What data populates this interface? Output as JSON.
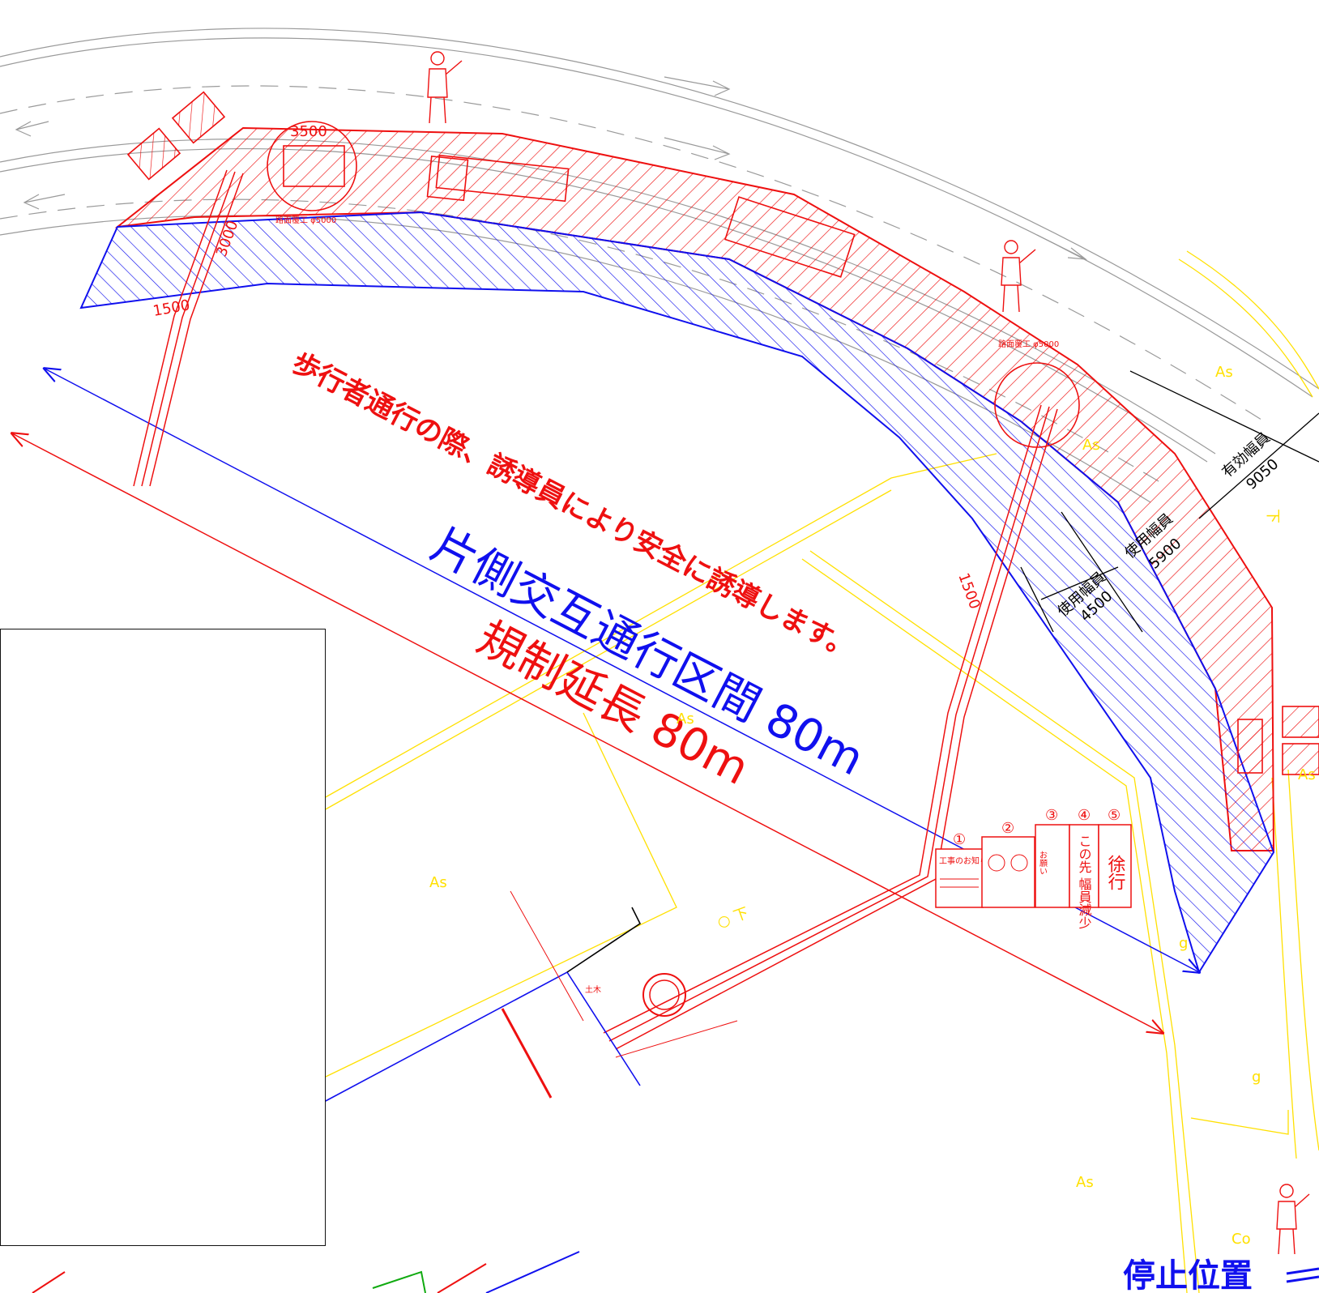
{
  "drawing": {
    "one_side_alternate": "片側交互通行区間 80m",
    "regulation_length": "規制延長 80m",
    "pedestrian_note": "歩行者通行の際、誘導員により安全に誘導します。",
    "stop_position": "停止位置",
    "effective_width_label": "有効幅員",
    "effective_width_value": "9050",
    "used_width_label_1": "使用幅員",
    "used_width_value_1": "5900",
    "used_width_label_2": "使用幅員",
    "used_width_value_2": "4500",
    "dim_3000": "3000",
    "dim_1500_a": "1500",
    "dim_1500_b": "1500",
    "dim_3500": "3500",
    "road_cut_1": "路面覆工 φ5000",
    "road_cut_2": "路面覆工 φ5000",
    "surface_as": [
      "As",
      "As",
      "As",
      "As",
      "As",
      "As"
    ],
    "surface_co": "Co",
    "surface_g": [
      "g",
      "g"
    ],
    "downhill": [
      "下",
      "○ 下"
    ],
    "doboku": "土木"
  },
  "signs": [
    {
      "number": "①",
      "text": "工事のお知らせ"
    },
    {
      "number": "②",
      "text": ""
    },
    {
      "number": "③",
      "text": "お願い"
    },
    {
      "number": "④",
      "text": "この先 幅員減少"
    },
    {
      "number": "⑤",
      "text": "徐行"
    }
  ],
  "colors": {
    "regulation": "#ee1010",
    "alternate": "#1010ee",
    "road_lines": "#999999",
    "base_map": "#ffe000",
    "background": "#ffffff"
  },
  "icons": [
    "flagman-icon",
    "arrow-board-icon",
    "crane-truck-icon"
  ]
}
